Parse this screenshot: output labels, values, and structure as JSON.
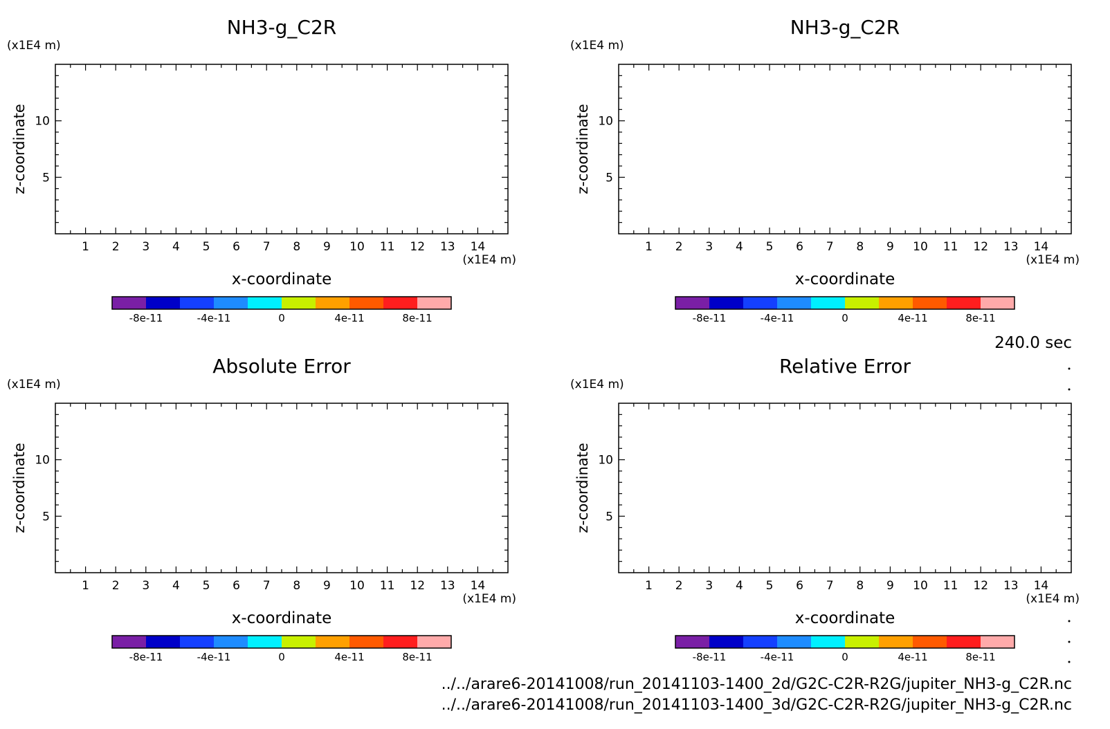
{
  "chart_data": [
    {
      "type": "heatmap",
      "title": "NH3-g_C2R",
      "xlabel": "x-coordinate",
      "ylabel": "z-coordinate",
      "x_unit": "(x1E4 m)",
      "y_unit": "(x1E4 m)",
      "xlim": [
        0,
        15
      ],
      "ylim": [
        0,
        15
      ],
      "x_ticks": [
        1,
        2,
        3,
        4,
        5,
        6,
        7,
        8,
        9,
        10,
        11,
        12,
        13,
        14
      ],
      "y_ticks": [
        5,
        10
      ],
      "values": [],
      "colorbar": {
        "ticks": [
          "-8e-11",
          "-4e-11",
          "0",
          "4e-11",
          "8e-11"
        ]
      }
    },
    {
      "type": "heatmap",
      "title": "NH3-g_C2R",
      "xlabel": "x-coordinate",
      "ylabel": "z-coordinate",
      "x_unit": "(x1E4 m)",
      "y_unit": "(x1E4 m)",
      "xlim": [
        0,
        15
      ],
      "ylim": [
        0,
        15
      ],
      "x_ticks": [
        1,
        2,
        3,
        4,
        5,
        6,
        7,
        8,
        9,
        10,
        11,
        12,
        13,
        14
      ],
      "y_ticks": [
        5,
        10
      ],
      "values": [],
      "colorbar": {
        "ticks": [
          "-8e-11",
          "-4e-11",
          "0",
          "4e-11",
          "8e-11"
        ]
      }
    },
    {
      "type": "heatmap",
      "title": "Absolute Error",
      "xlabel": "x-coordinate",
      "ylabel": "z-coordinate",
      "x_unit": "(x1E4 m)",
      "y_unit": "(x1E4 m)",
      "xlim": [
        0,
        15
      ],
      "ylim": [
        0,
        15
      ],
      "x_ticks": [
        1,
        2,
        3,
        4,
        5,
        6,
        7,
        8,
        9,
        10,
        11,
        12,
        13,
        14
      ],
      "y_ticks": [
        5,
        10
      ],
      "values": [],
      "colorbar": {
        "ticks": [
          "-8e-11",
          "-4e-11",
          "0",
          "4e-11",
          "8e-11"
        ]
      }
    },
    {
      "type": "heatmap",
      "title": "Relative Error",
      "xlabel": "x-coordinate",
      "ylabel": "z-coordinate",
      "x_unit": "(x1E4 m)",
      "y_unit": "(x1E4 m)",
      "xlim": [
        0,
        15
      ],
      "ylim": [
        0,
        15
      ],
      "x_ticks": [
        1,
        2,
        3,
        4,
        5,
        6,
        7,
        8,
        9,
        10,
        11,
        12,
        13,
        14
      ],
      "y_ticks": [
        5,
        10
      ],
      "values": [],
      "colorbar": {
        "ticks": [
          "-8e-11",
          "-4e-11",
          "0",
          "4e-11",
          "8e-11"
        ]
      }
    }
  ],
  "colorbar_colors": [
    "#7a1fa6",
    "#0000c8",
    "#1440ff",
    "#1e8cff",
    "#00f0ff",
    "#c8f000",
    "#ffa000",
    "#ff5a00",
    "#ff1e1e",
    "#ffaaaa"
  ],
  "time_label": "240.0 sec",
  "footer": {
    "file_2d": "../../arare6-20141008/run_20141103-1400_2d/G2C-C2R-R2G/jupiter_NH3-g_C2R.nc",
    "file_3d": "../../arare6-20141008/run_20141103-1400_3d/G2C-C2R-R2G/jupiter_NH3-g_C2R.nc"
  }
}
